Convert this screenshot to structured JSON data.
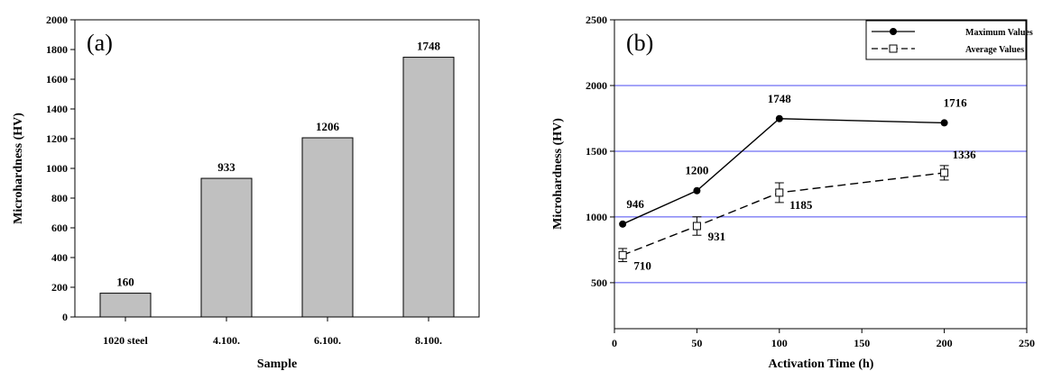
{
  "chart_data": [
    {
      "type": "bar",
      "panel_label": "(a)",
      "categories": [
        "1020 steel",
        "4.100.",
        "6.100.",
        "8.100."
      ],
      "values": [
        160,
        933,
        1206,
        1748
      ],
      "data_labels": [
        "160",
        "933",
        "1206",
        "1748"
      ],
      "xlabel": "Sample",
      "ylabel": "Microhardness (HV)",
      "ylim": [
        0,
        2000
      ],
      "yticks": [
        0,
        200,
        400,
        600,
        800,
        1000,
        1200,
        1400,
        1600,
        1800,
        2000
      ],
      "grid": false,
      "bar_color": "#c0c0c0"
    },
    {
      "type": "line",
      "panel_label": "(b)",
      "xlabel": "Activation Time (h)",
      "ylabel": "Microhardness (HV)",
      "xlim": [
        0,
        250
      ],
      "ylim": [
        150,
        2500
      ],
      "xticks": [
        0,
        50,
        100,
        150,
        200,
        250
      ],
      "yticks": [
        500,
        1000,
        1500,
        2000,
        2500
      ],
      "grid": true,
      "grid_color": "#4a4af0",
      "legend_position": "top-right",
      "series": [
        {
          "name": "Maximum Values",
          "x": [
            5,
            50,
            100,
            200
          ],
          "y": [
            946,
            1200,
            1748,
            1716
          ],
          "labels": [
            "946",
            "1200",
            "1748",
            "1716"
          ],
          "marker": "filled-circle",
          "line": "solid"
        },
        {
          "name": "Average Values",
          "x": [
            5,
            50,
            100,
            200
          ],
          "y": [
            710,
            931,
            1185,
            1336
          ],
          "error": [
            50,
            70,
            75,
            55
          ],
          "labels": [
            "710",
            "931",
            "1185",
            "1336"
          ],
          "marker": "open-square",
          "line": "dashed"
        }
      ]
    }
  ]
}
